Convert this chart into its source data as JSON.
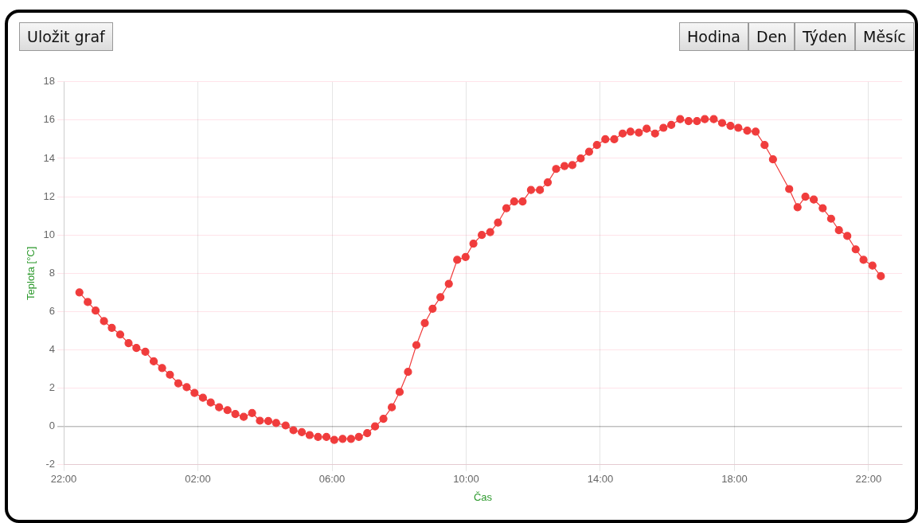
{
  "chart_data": {
    "type": "line",
    "xlabel": "Čas",
    "ylabel": "Teplota [°C]",
    "annotations": [
      "Uložit graf",
      "Hodina",
      "Den",
      "Týden",
      "Měsíc"
    ],
    "x": [
      "2000-01-01T22:28",
      "2000-01-01T22:43",
      "2000-01-01T22:57",
      "2000-01-01T23:12",
      "2000-01-01T23:26",
      "2000-01-01T23:41",
      "2000-01-01T23:56",
      "2000-01-02T00:10",
      "2000-01-02T00:26",
      "2000-01-02T00:41",
      "2000-01-02T00:56",
      "2000-01-02T01:10",
      "2000-01-02T01:25",
      "2000-01-02T01:40",
      "2000-01-02T01:54",
      "2000-01-02T02:09",
      "2000-01-02T02:23",
      "2000-01-02T02:38",
      "2000-01-02T02:53",
      "2000-01-02T03:07",
      "2000-01-02T03:22",
      "2000-01-02T03:37",
      "2000-01-02T03:51",
      "2000-01-02T04:06",
      "2000-01-02T04:20",
      "2000-01-02T04:37",
      "2000-01-02T04:51",
      "2000-01-02T05:06",
      "2000-01-02T05:20",
      "2000-01-02T05:35",
      "2000-01-02T05:50",
      "2000-01-02T06:04",
      "2000-01-02T06:19",
      "2000-01-02T06:34",
      "2000-01-02T06:48",
      "2000-01-02T07:03",
      "2000-01-02T07:17",
      "2000-01-02T07:32",
      "2000-01-02T07:47",
      "2000-01-02T08:01",
      "2000-01-02T08:16",
      "2000-01-02T08:31",
      "2000-01-02T08:46",
      "2000-01-02T09:00",
      "2000-01-02T09:14",
      "2000-01-02T09:29",
      "2000-01-02T09:44",
      "2000-01-02T09:59",
      "2000-01-02T10:13",
      "2000-01-02T10:28",
      "2000-01-02T10:43",
      "2000-01-02T10:57",
      "2000-01-02T11:12",
      "2000-01-02T11:26",
      "2000-01-02T11:41",
      "2000-01-02T11:56",
      "2000-01-02T12:12",
      "2000-01-02T12:26",
      "2000-01-02T12:41",
      "2000-01-02T12:56",
      "2000-01-02T13:10",
      "2000-01-02T13:25",
      "2000-01-02T13:40",
      "2000-01-02T13:54",
      "2000-01-02T14:09",
      "2000-01-02T14:25",
      "2000-01-02T14:40",
      "2000-01-02T14:54",
      "2000-01-02T15:09",
      "2000-01-02T15:23",
      "2000-01-02T15:38",
      "2000-01-02T15:53",
      "2000-01-02T16:07",
      "2000-01-02T16:23",
      "2000-01-02T16:38",
      "2000-01-02T16:53",
      "2000-01-02T17:07",
      "2000-01-02T17:23",
      "2000-01-02T17:38",
      "2000-01-02T17:53",
      "2000-01-02T18:07",
      "2000-01-02T18:23",
      "2000-01-02T18:38",
      "2000-01-02T18:54",
      "2000-01-02T19:09",
      "2000-01-02T19:38",
      "2000-01-02T19:53",
      "2000-01-02T20:07",
      "2000-01-02T20:22",
      "2000-01-02T20:38",
      "2000-01-02T20:53",
      "2000-01-02T21:07",
      "2000-01-02T21:22",
      "2000-01-02T21:37",
      "2000-01-02T21:51",
      "2000-01-02T22:07",
      "2000-01-02T22:22"
    ],
    "series": [
      {
        "color": "#f03c3c",
        "values": [
          7.0,
          6.5,
          6.05,
          5.5,
          5.15,
          4.8,
          4.35,
          4.1,
          3.9,
          3.4,
          3.05,
          2.7,
          2.25,
          2.05,
          1.75,
          1.5,
          1.25,
          1.0,
          0.85,
          0.65,
          0.5,
          0.7,
          0.3,
          0.28,
          0.18,
          0.05,
          -0.2,
          -0.3,
          -0.45,
          -0.55,
          -0.55,
          -0.7,
          -0.65,
          -0.65,
          -0.55,
          -0.35,
          0.0,
          0.4,
          1.0,
          1.8,
          2.85,
          4.25,
          5.4,
          6.15,
          6.75,
          7.45,
          8.7,
          8.85,
          9.55,
          10.0,
          10.15,
          10.65,
          11.4,
          11.75,
          11.75,
          12.35,
          12.35,
          12.75,
          13.45,
          13.6,
          13.65,
          14.0,
          14.35,
          14.7,
          15.0,
          15.0,
          15.3,
          15.4,
          15.35,
          15.55,
          15.3,
          15.6,
          15.75,
          16.05,
          15.95,
          15.95,
          16.05,
          16.05,
          15.85,
          15.7,
          15.6,
          15.45,
          15.4,
          14.7,
          13.95,
          12.4,
          11.45,
          12.0,
          11.85,
          11.4,
          10.85,
          10.25,
          9.95,
          9.25,
          8.7,
          8.4,
          7.85
        ]
      }
    ],
    "xlim": [
      "2000-01-01T22:00",
      "2000-01-02T23:00"
    ],
    "xticks": [
      {
        "value": "2000-01-01T22:00",
        "label": "22:00"
      },
      {
        "value": "2000-01-02T02:00",
        "label": "02:00"
      },
      {
        "value": "2000-01-02T06:00",
        "label": "06:00"
      },
      {
        "value": "2000-01-02T10:00",
        "label": "10:00"
      },
      {
        "value": "2000-01-02T14:00",
        "label": "14:00"
      },
      {
        "value": "2000-01-02T18:00",
        "label": "18:00"
      },
      {
        "value": "2000-01-02T22:00",
        "label": "22:00"
      }
    ],
    "ylim": [
      -2,
      18
    ],
    "yticks": [
      -2,
      0,
      2,
      4,
      6,
      8,
      10,
      12,
      14,
      16,
      18
    ],
    "grid": true,
    "marker": "circle",
    "line_style": "solid"
  }
}
